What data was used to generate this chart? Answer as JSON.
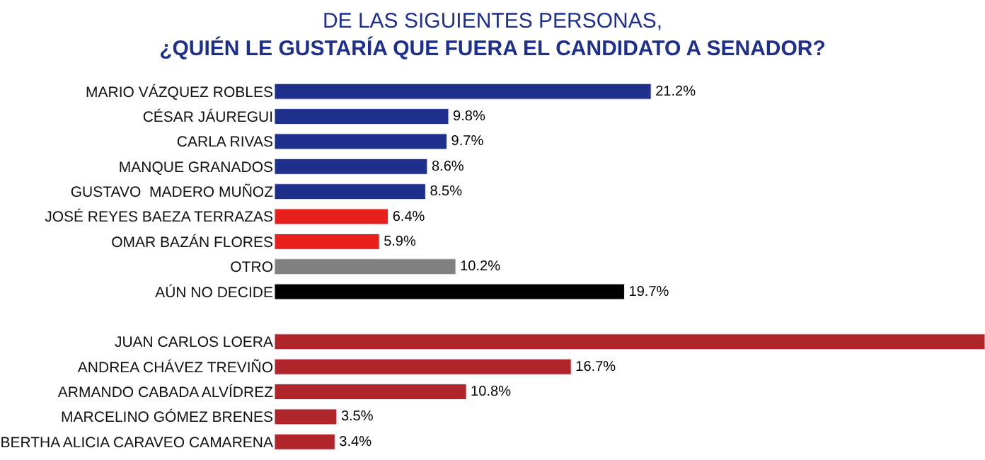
{
  "chart_data": {
    "type": "bar",
    "orientation": "horizontal",
    "title": "DE LAS SIGUIENTES PERSONAS,",
    "subtitle": "¿QUIÉN LE GUSTARÍA QUE FUERA EL CANDIDATO A SENADOR?",
    "categories": [
      "MARIO VÁZQUEZ ROBLES",
      "CÉSAR JÁUREGUI",
      "CARLA RIVAS",
      "MANQUE GRANADOS",
      "GUSTAVO  MADERO MUÑOZ",
      "JOSÉ REYES BAEZA TERRAZAS",
      "OMAR BAZÁN FLORES",
      "OTRO",
      "AÚN NO DECIDE",
      null,
      "JUAN CARLOS LOERA",
      "ANDREA CHÁVEZ TREVIÑO",
      "ARMANDO CABADA ALVÍDREZ",
      "MARCELINO GÓMEZ BRENES",
      "BERTHA ALICIA CARAVEO CAMARENA"
    ],
    "values": [
      21.2,
      9.8,
      9.7,
      8.6,
      8.5,
      6.4,
      5.9,
      10.2,
      19.7,
      null,
      40,
      16.7,
      10.8,
      3.5,
      3.4
    ],
    "value_labels": [
      "21.2%",
      "9.8%",
      "9.7%",
      "8.6%",
      "8.5%",
      "6.4%",
      "5.9%",
      "10.2%",
      "19.7%",
      null,
      null,
      "16.7%",
      "10.8%",
      "3.5%",
      "3.4%"
    ],
    "colors": [
      "#1f2f8c",
      "#1f2f8c",
      "#1f2f8c",
      "#1f2f8c",
      "#1f2f8c",
      "#e8201c",
      "#e8201c",
      "#808080",
      "#000000",
      null,
      "#b0252a",
      "#b0252a",
      "#b0252a",
      "#b0252a",
      "#b0252a"
    ],
    "legend": false,
    "tick_labels": "y"
  }
}
